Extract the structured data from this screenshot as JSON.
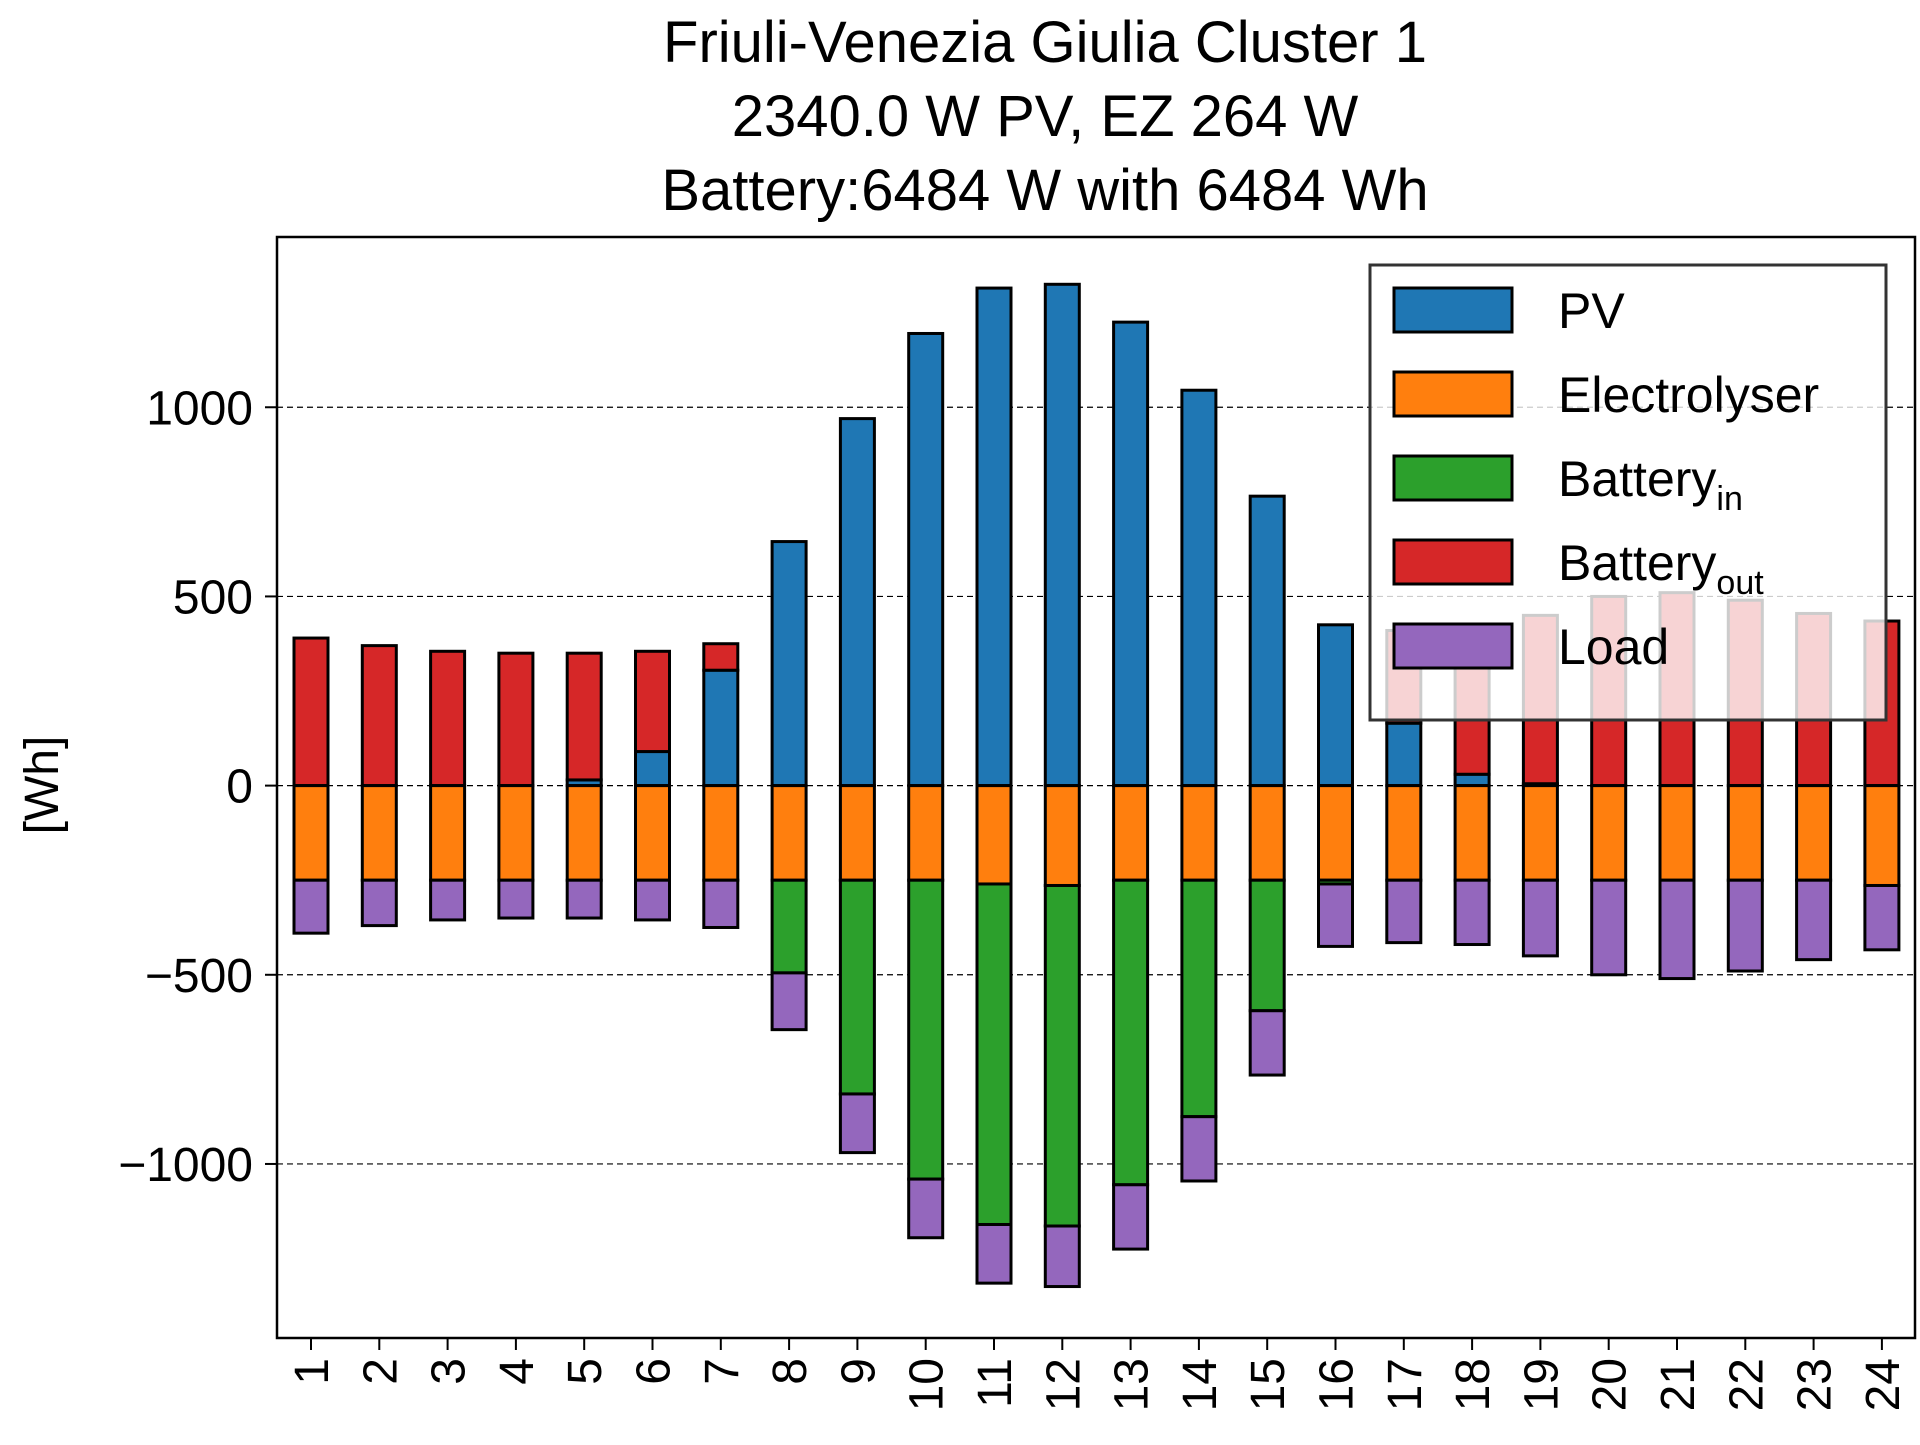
{
  "chart_data": {
    "type": "bar",
    "stacked": true,
    "title_lines": [
      "Friuli-Venezia Giulia Cluster 1",
      "2340.0 W PV, EZ 264 W",
      "Battery:6484 W with 6484 Wh"
    ],
    "ylabel": "[Wh]",
    "xlabel": "",
    "ylim": [
      -1460,
      1450
    ],
    "yticks": [
      -1000,
      -500,
      0,
      500,
      1000
    ],
    "ytick_labels": [
      "−1000",
      "−500",
      "0",
      "500",
      "1000"
    ],
    "grid": "horizontal dashed",
    "legend_position": "upper right",
    "categories": [
      "1",
      "2",
      "3",
      "4",
      "5",
      "6",
      "7",
      "8",
      "9",
      "10",
      "11",
      "12",
      "13",
      "14",
      "15",
      "16",
      "17",
      "18",
      "19",
      "20",
      "21",
      "22",
      "23",
      "24"
    ],
    "series": [
      {
        "key": "pv",
        "name": "PV",
        "sub": "",
        "color": "#1f77b4",
        "direction": "positive",
        "values": [
          0,
          0,
          0,
          0,
          15,
          90,
          305,
          645,
          970,
          1195,
          1315,
          1325,
          1225,
          1045,
          765,
          425,
          165,
          30,
          5,
          0,
          0,
          0,
          0,
          0
        ]
      },
      {
        "key": "battery_out",
        "name": "Battery",
        "sub": "out",
        "color": "#d62728",
        "direction": "positive",
        "values": [
          390,
          370,
          355,
          350,
          335,
          265,
          70,
          0,
          0,
          0,
          0,
          0,
          0,
          0,
          0,
          0,
          245,
          390,
          445,
          500,
          510,
          490,
          455,
          435
        ]
      },
      {
        "key": "electrolyser",
        "name": "Electrolyser",
        "sub": "",
        "color": "#ff7f0e",
        "direction": "negative",
        "values": [
          -250,
          -250,
          -250,
          -250,
          -250,
          -250,
          -250,
          -250,
          -250,
          -250,
          -260,
          -264,
          -250,
          -250,
          -250,
          -250,
          -250,
          -250,
          -250,
          -250,
          -250,
          -250,
          -250,
          -264
        ]
      },
      {
        "key": "battery_in",
        "name": "Battery",
        "sub": "in",
        "color": "#2ca02c",
        "direction": "negative",
        "values": [
          0,
          0,
          0,
          0,
          0,
          0,
          0,
          -245,
          -565,
          -790,
          -900,
          -900,
          -805,
          -625,
          -345,
          -10,
          0,
          0,
          0,
          0,
          0,
          0,
          0,
          0
        ]
      },
      {
        "key": "load",
        "name": "Load",
        "sub": "",
        "color": "#9467bd",
        "direction": "negative",
        "values": [
          -140,
          -120,
          -105,
          -100,
          -100,
          -105,
          -125,
          -150,
          -155,
          -155,
          -155,
          -160,
          -170,
          -170,
          -170,
          -165,
          -165,
          -170,
          -200,
          -250,
          -260,
          -240,
          -210,
          -170
        ]
      }
    ],
    "legend_order": [
      "pv",
      "electrolyser",
      "battery_in",
      "battery_out",
      "load"
    ]
  }
}
